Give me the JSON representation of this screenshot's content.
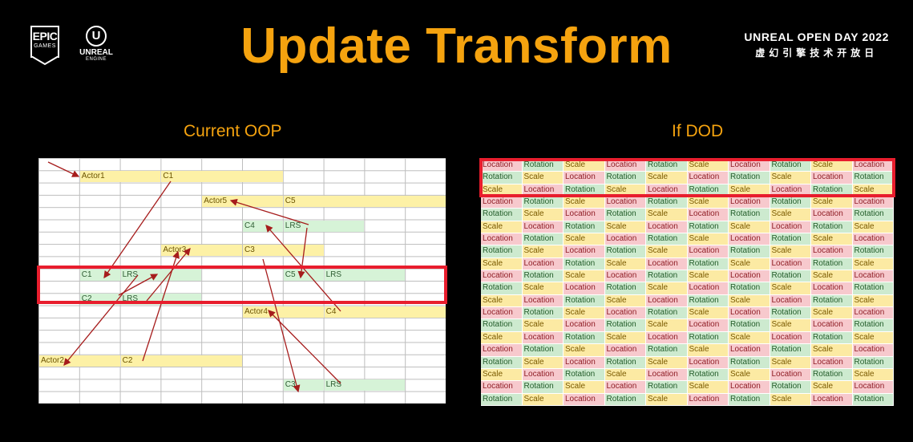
{
  "header": {
    "title": "Update Transform",
    "event_line1": "UNREAL OPEN DAY 2022",
    "event_line2": "虚幻引擎技术开放日",
    "epic_logo_line1": "EPIC",
    "epic_logo_line2": "GAMES",
    "ue_logo_mark": "U",
    "ue_logo_line1": "UNREAL",
    "ue_logo_line2": "ENGINE"
  },
  "left_panel": {
    "heading": "Current OOP",
    "cells": [
      {
        "text": "Actor1",
        "kind": "y",
        "col": 1,
        "row": 1,
        "span": 2
      },
      {
        "text": "C1",
        "kind": "y",
        "col": 3,
        "row": 1,
        "span": 3
      },
      {
        "text": "Actor5",
        "kind": "y",
        "col": 4,
        "row": 3,
        "span": 2
      },
      {
        "text": "C5",
        "kind": "y",
        "col": 6,
        "row": 3,
        "span": 4
      },
      {
        "text": "C4",
        "kind": "g",
        "col": 5,
        "row": 5,
        "span": 1
      },
      {
        "text": "LRS",
        "kind": "g",
        "col": 6,
        "row": 5,
        "span": 2
      },
      {
        "text": "Actor3",
        "kind": "y",
        "col": 3,
        "row": 7,
        "span": 2
      },
      {
        "text": "C3",
        "kind": "y",
        "col": 5,
        "row": 7,
        "span": 2
      },
      {
        "text": "C1",
        "kind": "g",
        "col": 1,
        "row": 9,
        "span": 1
      },
      {
        "text": "LRS",
        "kind": "g",
        "col": 2,
        "row": 9,
        "span": 2
      },
      {
        "text": "C5",
        "kind": "g",
        "col": 6,
        "row": 9,
        "span": 1
      },
      {
        "text": "LRS",
        "kind": "g",
        "col": 7,
        "row": 9,
        "span": 2
      },
      {
        "text": "C2",
        "kind": "g",
        "col": 1,
        "row": 11,
        "span": 1
      },
      {
        "text": "LRS",
        "kind": "g",
        "col": 2,
        "row": 11,
        "span": 2
      },
      {
        "text": "Actor4",
        "kind": "y",
        "col": 5,
        "row": 12,
        "span": 2
      },
      {
        "text": "C4",
        "kind": "y",
        "col": 7,
        "row": 12,
        "span": 3
      },
      {
        "text": "Actor2",
        "kind": "y",
        "col": 0,
        "row": 16,
        "span": 2
      },
      {
        "text": "C2",
        "kind": "y",
        "col": 2,
        "row": 16,
        "span": 3
      },
      {
        "text": "C3",
        "kind": "g",
        "col": 6,
        "row": 18,
        "span": 1
      },
      {
        "text": "LRS",
        "kind": "g",
        "col": 7,
        "row": 18,
        "span": 2
      }
    ]
  },
  "right_panel": {
    "heading": "If DOD",
    "labels": [
      "Location",
      "Rotation",
      "Scale"
    ],
    "row_count": 20,
    "col_count": 10
  },
  "colors": {
    "title": "#f5a30f",
    "highlight": "#e81d2d",
    "location_bg": "#f7c9cd",
    "rotation_bg": "#cdeacf",
    "scale_bg": "#fceaa3",
    "arrow": "#a61c1c"
  }
}
